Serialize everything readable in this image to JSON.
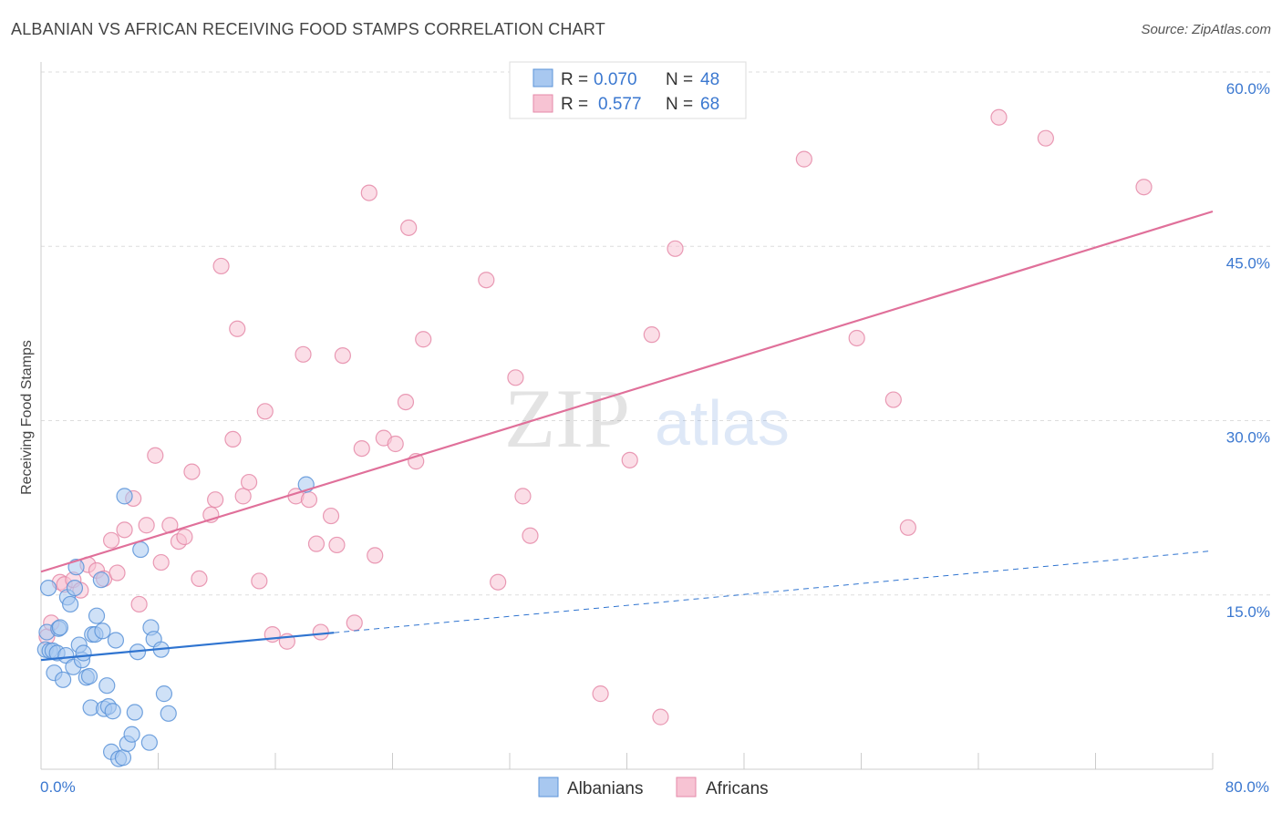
{
  "header": {
    "title": "ALBANIAN VS AFRICAN RECEIVING FOOD STAMPS CORRELATION CHART",
    "source": "Source: ZipAtlas.com"
  },
  "watermark": {
    "zip": "ZIP",
    "atlas": "atlas"
  },
  "legend_top": {
    "rows": [
      {
        "r_label": "R =",
        "r_value": "0.070",
        "n_label": "N =",
        "n_value": "48"
      },
      {
        "r_label": "R =",
        "r_value": "0.577",
        "n_label": "N =",
        "n_value": "68"
      }
    ]
  },
  "legend_bottom": {
    "albanians": "Albanians",
    "africans": "Africans"
  },
  "colors": {
    "albanian_fill": "#a8c8f0",
    "albanian_stroke": "#5b93d8",
    "albanian_line": "#2f74d0",
    "african_fill": "#f7c3d3",
    "african_stroke": "#e58aa8",
    "african_line": "#e0709a",
    "accent_text": "#3b78d0"
  },
  "chart_data": {
    "type": "scatter",
    "title": "ALBANIAN VS AFRICAN RECEIVING FOOD STAMPS CORRELATION CHART",
    "xlabel": "",
    "ylabel": "Receiving Food Stamps",
    "xlim": [
      0,
      80
    ],
    "ylim": [
      0,
      60
    ],
    "x_tick_labels": [
      "0.0%",
      "80.0%"
    ],
    "y_ticks": [
      15,
      30,
      45,
      60
    ],
    "y_tick_labels": [
      "15.0%",
      "30.0%",
      "45.0%",
      "60.0%"
    ],
    "grid": true,
    "series": [
      {
        "name": "Albanians",
        "r": 0.07,
        "n": 48,
        "trend": {
          "x": [
            0,
            80
          ],
          "y": [
            9.4,
            18.8
          ],
          "solid_until": 20
        },
        "points": [
          [
            0.3,
            10.3
          ],
          [
            0.4,
            11.8
          ],
          [
            0.5,
            15.6
          ],
          [
            0.6,
            10.2
          ],
          [
            0.8,
            10.2
          ],
          [
            0.9,
            8.3
          ],
          [
            1.1,
            10.0
          ],
          [
            1.2,
            12.1
          ],
          [
            1.3,
            12.2
          ],
          [
            1.5,
            7.7
          ],
          [
            1.7,
            9.8
          ],
          [
            1.8,
            14.8
          ],
          [
            2.0,
            14.2
          ],
          [
            2.2,
            8.8
          ],
          [
            2.3,
            15.6
          ],
          [
            2.4,
            17.4
          ],
          [
            2.6,
            10.7
          ],
          [
            2.8,
            9.4
          ],
          [
            2.9,
            10.0
          ],
          [
            3.1,
            7.9
          ],
          [
            3.3,
            8.0
          ],
          [
            3.4,
            5.3
          ],
          [
            3.5,
            11.6
          ],
          [
            3.7,
            11.6
          ],
          [
            3.8,
            13.2
          ],
          [
            4.1,
            16.3
          ],
          [
            4.2,
            11.9
          ],
          [
            4.3,
            5.2
          ],
          [
            4.5,
            7.2
          ],
          [
            4.6,
            5.4
          ],
          [
            4.8,
            1.5
          ],
          [
            4.9,
            5.0
          ],
          [
            5.1,
            11.1
          ],
          [
            5.3,
            0.9
          ],
          [
            5.6,
            1.0
          ],
          [
            5.7,
            23.5
          ],
          [
            5.9,
            2.2
          ],
          [
            6.2,
            3.0
          ],
          [
            6.4,
            4.9
          ],
          [
            6.6,
            10.1
          ],
          [
            6.8,
            18.9
          ],
          [
            7.4,
            2.3
          ],
          [
            7.5,
            12.2
          ],
          [
            7.7,
            11.2
          ],
          [
            8.2,
            10.3
          ],
          [
            8.4,
            6.5
          ],
          [
            8.7,
            4.8
          ],
          [
            18.1,
            24.5
          ]
        ]
      },
      {
        "name": "Africans",
        "r": 0.577,
        "n": 68,
        "trend": {
          "x": [
            0,
            80
          ],
          "y": [
            17.0,
            48.0
          ]
        },
        "points": [
          [
            0.4,
            11.4
          ],
          [
            0.7,
            12.6
          ],
          [
            1.3,
            16.1
          ],
          [
            1.6,
            15.9
          ],
          [
            2.2,
            16.3
          ],
          [
            2.7,
            15.4
          ],
          [
            3.2,
            17.6
          ],
          [
            3.8,
            17.1
          ],
          [
            4.3,
            16.4
          ],
          [
            4.8,
            19.7
          ],
          [
            5.2,
            16.9
          ],
          [
            5.7,
            20.6
          ],
          [
            6.3,
            23.3
          ],
          [
            6.7,
            14.2
          ],
          [
            7.2,
            21.0
          ],
          [
            7.8,
            27.0
          ],
          [
            8.2,
            17.8
          ],
          [
            8.8,
            21.0
          ],
          [
            9.4,
            19.6
          ],
          [
            9.8,
            20.0
          ],
          [
            10.3,
            25.6
          ],
          [
            10.8,
            16.4
          ],
          [
            11.6,
            21.9
          ],
          [
            11.9,
            23.2
          ],
          [
            12.3,
            43.3
          ],
          [
            13.1,
            28.4
          ],
          [
            13.4,
            37.9
          ],
          [
            13.8,
            23.5
          ],
          [
            14.2,
            24.7
          ],
          [
            14.9,
            16.2
          ],
          [
            15.3,
            30.8
          ],
          [
            15.8,
            11.6
          ],
          [
            16.8,
            11.0
          ],
          [
            17.4,
            23.5
          ],
          [
            17.9,
            35.7
          ],
          [
            18.3,
            23.2
          ],
          [
            18.8,
            19.4
          ],
          [
            19.1,
            11.8
          ],
          [
            19.8,
            21.8
          ],
          [
            20.2,
            19.3
          ],
          [
            20.6,
            35.6
          ],
          [
            21.4,
            12.6
          ],
          [
            21.9,
            27.6
          ],
          [
            22.4,
            49.6
          ],
          [
            22.8,
            18.4
          ],
          [
            23.4,
            28.5
          ],
          [
            24.2,
            28.0
          ],
          [
            24.9,
            31.6
          ],
          [
            25.1,
            46.6
          ],
          [
            25.6,
            26.5
          ],
          [
            26.1,
            37.0
          ],
          [
            30.4,
            42.1
          ],
          [
            31.2,
            16.1
          ],
          [
            32.4,
            33.7
          ],
          [
            32.9,
            23.5
          ],
          [
            33.4,
            20.1
          ],
          [
            38.2,
            6.5
          ],
          [
            40.2,
            26.6
          ],
          [
            41.7,
            37.4
          ],
          [
            42.3,
            4.5
          ],
          [
            43.3,
            44.8
          ],
          [
            52.1,
            52.5
          ],
          [
            55.7,
            37.1
          ],
          [
            58.2,
            31.8
          ],
          [
            59.2,
            20.8
          ],
          [
            65.4,
            56.1
          ],
          [
            68.6,
            54.3
          ],
          [
            75.3,
            50.1
          ]
        ]
      }
    ]
  }
}
